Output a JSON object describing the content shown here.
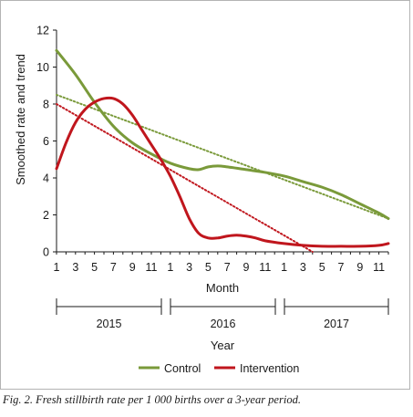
{
  "caption": "Fig. 2. Fresh stillbirth rate per 1 000 births over a 3-year period.",
  "chart_data": {
    "type": "line",
    "ylabel": "Smoothed rate and trend",
    "xlabel": "Month",
    "year_axis_label": "Year",
    "ylim": [
      0,
      12
    ],
    "yticks": [
      "0",
      "2",
      "4",
      "6",
      "8",
      "10",
      "12"
    ],
    "xlim": [
      1,
      36
    ],
    "month_tick_labels": [
      "1",
      "3",
      "5",
      "7",
      "9",
      "11",
      "1",
      "3",
      "5",
      "7",
      "9",
      "11",
      "1",
      "3",
      "5",
      "7",
      "9",
      "11"
    ],
    "years": [
      "2015",
      "2016",
      "2017"
    ],
    "grid": false,
    "legend_position": "bottom",
    "series": [
      {
        "name": "Control",
        "color": "#7a9a3a",
        "x": [
          1,
          3,
          5,
          7,
          9,
          11,
          13,
          15,
          16,
          17,
          18,
          19,
          21,
          23,
          25,
          27,
          29,
          31,
          33,
          35,
          36
        ],
        "values": [
          10.9,
          9.6,
          8.1,
          6.8,
          5.9,
          5.3,
          4.8,
          4.5,
          4.45,
          4.6,
          4.65,
          4.6,
          4.45,
          4.3,
          4.1,
          3.8,
          3.5,
          3.1,
          2.6,
          2.1,
          1.8
        ]
      },
      {
        "name": "Intervention",
        "color": "#c0161d",
        "x": [
          1,
          2,
          3,
          4,
          5,
          6,
          7,
          8,
          9,
          10,
          11,
          12,
          13,
          14,
          15,
          16,
          17,
          18,
          19,
          20,
          21,
          22,
          23,
          25,
          27,
          29,
          31,
          33,
          35,
          36
        ],
        "values": [
          4.5,
          5.9,
          7.0,
          7.7,
          8.1,
          8.3,
          8.3,
          8.0,
          7.4,
          6.6,
          5.8,
          5.0,
          4.1,
          3.0,
          1.8,
          1.0,
          0.75,
          0.75,
          0.85,
          0.9,
          0.85,
          0.75,
          0.6,
          0.45,
          0.35,
          0.3,
          0.3,
          0.3,
          0.35,
          0.45
        ]
      }
    ],
    "trendlines": [
      {
        "series": "Control",
        "style": "dotted",
        "color": "#7a9a3a",
        "x": [
          1,
          36
        ],
        "values": [
          8.5,
          1.8
        ]
      },
      {
        "series": "Intervention",
        "style": "dotted",
        "color": "#c0161d",
        "x": [
          1,
          28
        ],
        "values": [
          8.0,
          0.0
        ]
      }
    ]
  }
}
